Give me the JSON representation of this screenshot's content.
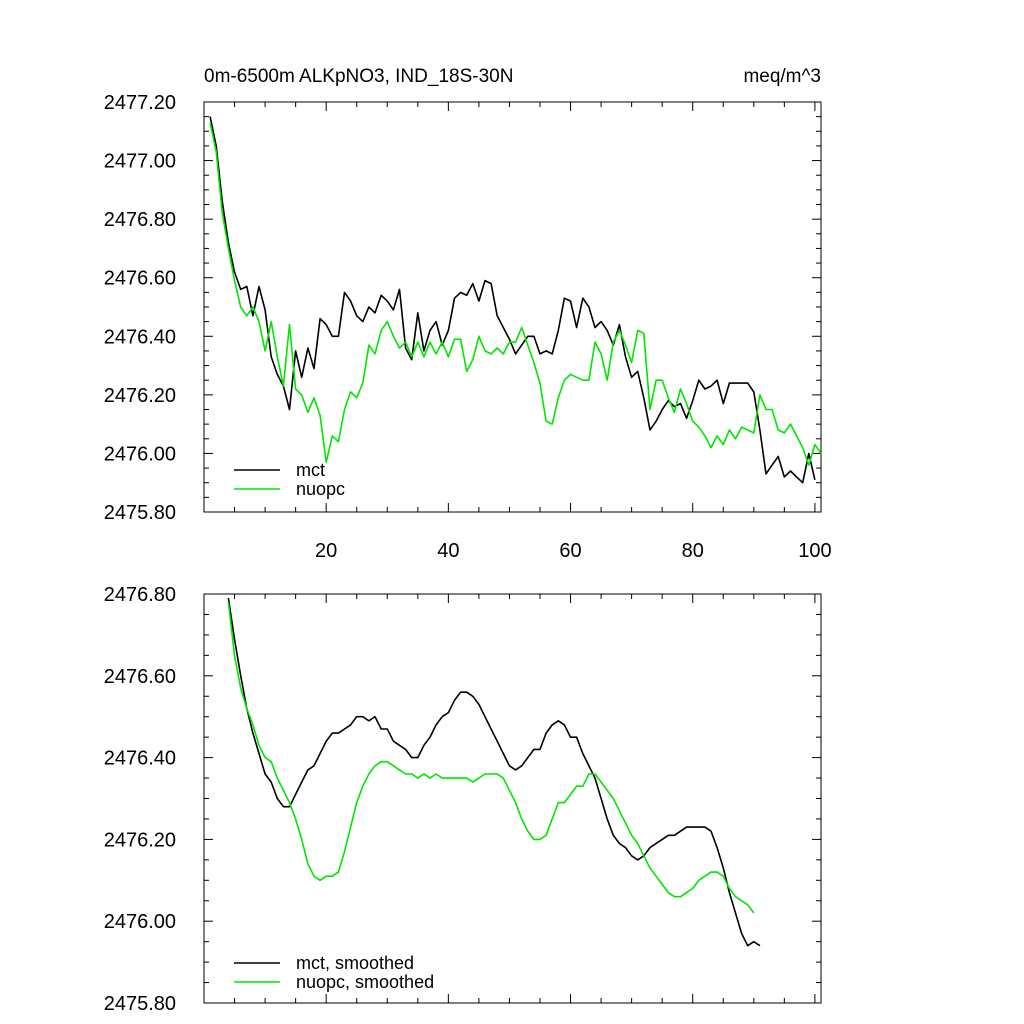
{
  "chart_data": [
    {
      "type": "line",
      "title": "0m-6500m ALKpNO3, IND_18S-30N",
      "units": "meq/m^3",
      "xlabel": "",
      "ylabel": "",
      "xlim": [
        0,
        101
      ],
      "ylim": [
        2475.8,
        2477.2
      ],
      "x_ticks": [
        20,
        40,
        60,
        80,
        100
      ],
      "x_tick_labels": [
        "20",
        "40",
        "60",
        "80",
        "100"
      ],
      "y_ticks": [
        2475.8,
        2476.0,
        2476.2,
        2476.4,
        2476.6,
        2476.8,
        2477.0,
        2477.2
      ],
      "y_tick_labels": [
        "2475.80",
        "2476.00",
        "2476.20",
        "2476.40",
        "2476.60",
        "2476.80",
        "2477.00",
        "2477.20"
      ],
      "legend_position": "bottom-left",
      "x_start": 1,
      "series": [
        {
          "name": "mct",
          "color": "#000000",
          "values": [
            2477.15,
            2477.05,
            2476.86,
            2476.72,
            2476.62,
            2476.56,
            2476.57,
            2476.47,
            2476.57,
            2476.49,
            2476.33,
            2476.27,
            2476.23,
            2476.15,
            2476.35,
            2476.26,
            2476.36,
            2476.29,
            2476.46,
            2476.44,
            2476.4,
            2476.4,
            2476.55,
            2476.52,
            2476.47,
            2476.45,
            2476.5,
            2476.48,
            2476.54,
            2476.52,
            2476.49,
            2476.56,
            2476.36,
            2476.32,
            2476.48,
            2476.35,
            2476.42,
            2476.45,
            2476.37,
            2476.42,
            2476.53,
            2476.55,
            2476.54,
            2476.58,
            2476.52,
            2476.59,
            2476.58,
            2476.47,
            2476.43,
            2476.39,
            2476.34,
            2476.37,
            2476.4,
            2476.4,
            2476.34,
            2476.35,
            2476.34,
            2476.42,
            2476.53,
            2476.52,
            2476.43,
            2476.53,
            2476.5,
            2476.43,
            2476.45,
            2476.42,
            2476.37,
            2476.44,
            2476.33,
            2476.26,
            2476.28,
            2476.19,
            2476.08,
            2476.11,
            2476.15,
            2476.18,
            2476.16,
            2476.17,
            2476.12,
            2476.18,
            2476.25,
            2476.22,
            2476.23,
            2476.25,
            2476.17,
            2476.24,
            2476.24,
            2476.24,
            2476.24,
            2476.21,
            2476.08,
            2475.93,
            2475.96,
            2475.99,
            2475.92,
            2475.94,
            2475.92,
            2475.9,
            2476.0,
            2475.91
          ]
        },
        {
          "name": "nuopc",
          "color": "#00e600",
          "values": [
            2477.13,
            2477.03,
            2476.82,
            2476.7,
            2476.59,
            2476.5,
            2476.47,
            2476.5,
            2476.45,
            2476.35,
            2476.45,
            2476.33,
            2476.23,
            2476.44,
            2476.22,
            2476.2,
            2476.14,
            2476.19,
            2476.13,
            2475.97,
            2476.06,
            2476.04,
            2476.15,
            2476.21,
            2476.19,
            2476.24,
            2476.37,
            2476.34,
            2476.42,
            2476.45,
            2476.4,
            2476.36,
            2476.38,
            2476.33,
            2476.38,
            2476.33,
            2476.38,
            2476.34,
            2476.38,
            2476.33,
            2476.39,
            2476.39,
            2476.28,
            2476.32,
            2476.4,
            2476.35,
            2476.34,
            2476.36,
            2476.34,
            2476.38,
            2476.38,
            2476.43,
            2476.37,
            2476.31,
            2476.24,
            2476.11,
            2476.1,
            2476.19,
            2476.25,
            2476.27,
            2476.26,
            2476.25,
            2476.25,
            2476.38,
            2476.34,
            2476.25,
            2476.38,
            2476.42,
            2476.37,
            2476.31,
            2476.42,
            2476.41,
            2476.15,
            2476.25,
            2476.25,
            2476.19,
            2476.14,
            2476.22,
            2476.17,
            2476.11,
            2476.09,
            2476.06,
            2476.02,
            2476.06,
            2476.03,
            2476.08,
            2476.05,
            2476.09,
            2476.08,
            2476.07,
            2476.2,
            2476.15,
            2476.15,
            2476.08,
            2476.07,
            2476.1,
            2476.06,
            2476.02,
            2475.96,
            2476.03,
            2476.0
          ]
        }
      ]
    },
    {
      "type": "line",
      "title": "",
      "xlabel": "",
      "ylabel": "",
      "xlim": [
        0,
        101
      ],
      "ylim": [
        2475.8,
        2476.8
      ],
      "x_ticks": [
        20,
        40,
        60,
        80,
        100
      ],
      "x_tick_labels": [],
      "y_ticks": [
        2475.8,
        2476.0,
        2476.2,
        2476.4,
        2476.6,
        2476.8
      ],
      "y_tick_labels": [
        "2475.80",
        "2476.00",
        "2476.20",
        "2476.40",
        "2476.60",
        "2476.80"
      ],
      "legend_position": "bottom-left",
      "x_start": 4,
      "series": [
        {
          "name": "mct, smoothed",
          "color": "#000000",
          "values": [
            2476.79,
            2476.69,
            2476.6,
            2476.52,
            2476.46,
            2476.41,
            2476.36,
            2476.34,
            2476.3,
            2476.28,
            2476.28,
            2476.31,
            2476.34,
            2476.37,
            2476.38,
            2476.41,
            2476.44,
            2476.46,
            2476.46,
            2476.47,
            2476.48,
            2476.5,
            2476.5,
            2476.49,
            2476.5,
            2476.47,
            2476.47,
            2476.44,
            2476.43,
            2476.42,
            2476.4,
            2476.4,
            2476.43,
            2476.45,
            2476.48,
            2476.5,
            2476.51,
            2476.54,
            2476.56,
            2476.56,
            2476.55,
            2476.53,
            2476.5,
            2476.47,
            2476.44,
            2476.41,
            2476.38,
            2476.37,
            2476.38,
            2476.4,
            2476.42,
            2476.42,
            2476.46,
            2476.48,
            2476.49,
            2476.48,
            2476.45,
            2476.45,
            2476.41,
            2476.38,
            2476.35,
            2476.3,
            2476.25,
            2476.21,
            2476.19,
            2476.18,
            2476.16,
            2476.15,
            2476.16,
            2476.18,
            2476.19,
            2476.2,
            2476.21,
            2476.21,
            2476.22,
            2476.23,
            2476.23,
            2476.23,
            2476.23,
            2476.22,
            2476.18,
            2476.13,
            2476.07,
            2476.02,
            2475.97,
            2475.94,
            2475.95,
            2475.94
          ]
        },
        {
          "name": "nuopc, smoothed",
          "color": "#00e600",
          "values": [
            2476.78,
            2476.65,
            2476.57,
            2476.52,
            2476.48,
            2476.43,
            2476.4,
            2476.39,
            2476.35,
            2476.32,
            2476.29,
            2476.25,
            2476.2,
            2476.14,
            2476.11,
            2476.1,
            2476.11,
            2476.11,
            2476.12,
            2476.17,
            2476.23,
            2476.29,
            2476.33,
            2476.36,
            2476.38,
            2476.39,
            2476.39,
            2476.38,
            2476.37,
            2476.36,
            2476.36,
            2476.35,
            2476.36,
            2476.35,
            2476.36,
            2476.35,
            2476.35,
            2476.35,
            2476.35,
            2476.35,
            2476.34,
            2476.35,
            2476.36,
            2476.36,
            2476.36,
            2476.35,
            2476.32,
            2476.29,
            2476.25,
            2476.22,
            2476.2,
            2476.2,
            2476.21,
            2476.25,
            2476.29,
            2476.29,
            2476.31,
            2476.33,
            2476.33,
            2476.36,
            2476.36,
            2476.34,
            2476.32,
            2476.3,
            2476.27,
            2476.24,
            2476.21,
            2476.19,
            2476.16,
            2476.13,
            2476.11,
            2476.09,
            2476.07,
            2476.06,
            2476.06,
            2476.07,
            2476.08,
            2476.1,
            2476.11,
            2476.12,
            2476.12,
            2476.11,
            2476.08,
            2476.06,
            2476.05,
            2476.04,
            2476.02
          ]
        }
      ]
    }
  ]
}
